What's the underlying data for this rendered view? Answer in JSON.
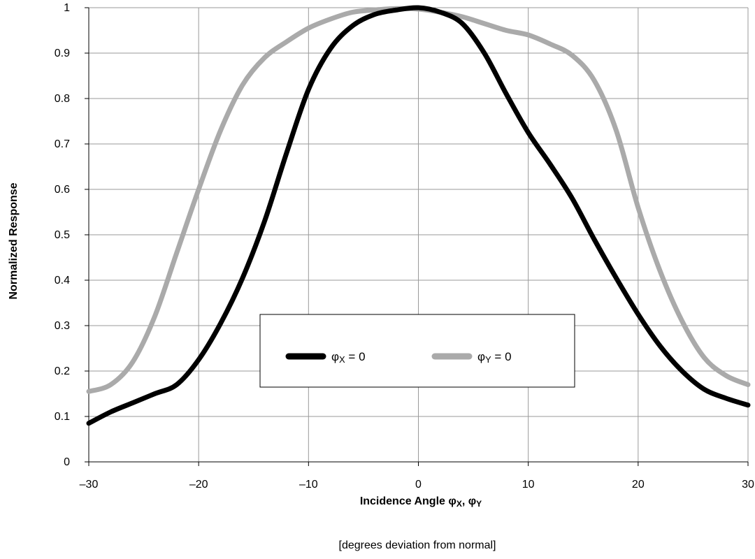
{
  "chart_data": {
    "type": "line",
    "xlabel_main": "Incidence Angle φ",
    "xlabel_sub_x": "X",
    "xlabel_sep": ", φ",
    "xlabel_sub_y": "Y",
    "ylabel": "Normalized Response",
    "xlim": [
      -30,
      30
    ],
    "ylim": [
      0,
      1
    ],
    "xticks": [
      -30,
      -20,
      -10,
      0,
      10,
      20,
      30
    ],
    "xtick_labels": [
      "–30",
      "–20",
      "–10",
      "0",
      "10",
      "20",
      "30"
    ],
    "yticks": [
      0,
      0.1,
      0.2,
      0.3,
      0.4,
      0.5,
      0.6,
      0.7,
      0.8,
      0.9,
      1
    ],
    "ytick_labels": [
      "0",
      "0.1",
      "0.2",
      "0.3",
      "0.4",
      "0.5",
      "0.6",
      "0.7",
      "0.8",
      "0.9",
      "1"
    ],
    "grid": true,
    "legend_position": "center",
    "note": "[degrees deviation from normal]",
    "series": [
      {
        "name": "φX = 0",
        "symbol": "φ",
        "sub": "X",
        "suffix": " = 0",
        "color": "#000000",
        "x": [
          -30,
          -28,
          -26,
          -24,
          -22,
          -20,
          -18,
          -16,
          -14,
          -12,
          -10,
          -8,
          -6,
          -4,
          -2,
          0,
          2,
          4,
          6,
          8,
          10,
          12,
          14,
          16,
          18,
          20,
          22,
          24,
          26,
          28,
          30
        ],
        "y": [
          0.085,
          0.11,
          0.13,
          0.15,
          0.17,
          0.225,
          0.305,
          0.405,
          0.53,
          0.68,
          0.82,
          0.91,
          0.96,
          0.985,
          0.995,
          1.0,
          0.99,
          0.965,
          0.9,
          0.81,
          0.725,
          0.655,
          0.58,
          0.49,
          0.405,
          0.325,
          0.255,
          0.2,
          0.16,
          0.14,
          0.125
        ]
      },
      {
        "name": "φY = 0",
        "symbol": "φ",
        "sub": "Y",
        "suffix": " = 0",
        "color": "#aaaaaa",
        "x": [
          -30,
          -28,
          -26,
          -24,
          -22,
          -20,
          -18,
          -16,
          -14,
          -12,
          -10,
          -8,
          -6,
          -4,
          -2,
          0,
          2,
          4,
          6,
          8,
          10,
          12,
          14,
          16,
          18,
          20,
          22,
          24,
          26,
          28,
          30
        ],
        "y": [
          0.155,
          0.17,
          0.22,
          0.32,
          0.46,
          0.6,
          0.73,
          0.83,
          0.89,
          0.925,
          0.955,
          0.975,
          0.99,
          0.995,
          0.998,
          0.997,
          0.99,
          0.98,
          0.965,
          0.95,
          0.94,
          0.92,
          0.895,
          0.84,
          0.73,
          0.56,
          0.42,
          0.31,
          0.23,
          0.19,
          0.17
        ]
      }
    ]
  }
}
